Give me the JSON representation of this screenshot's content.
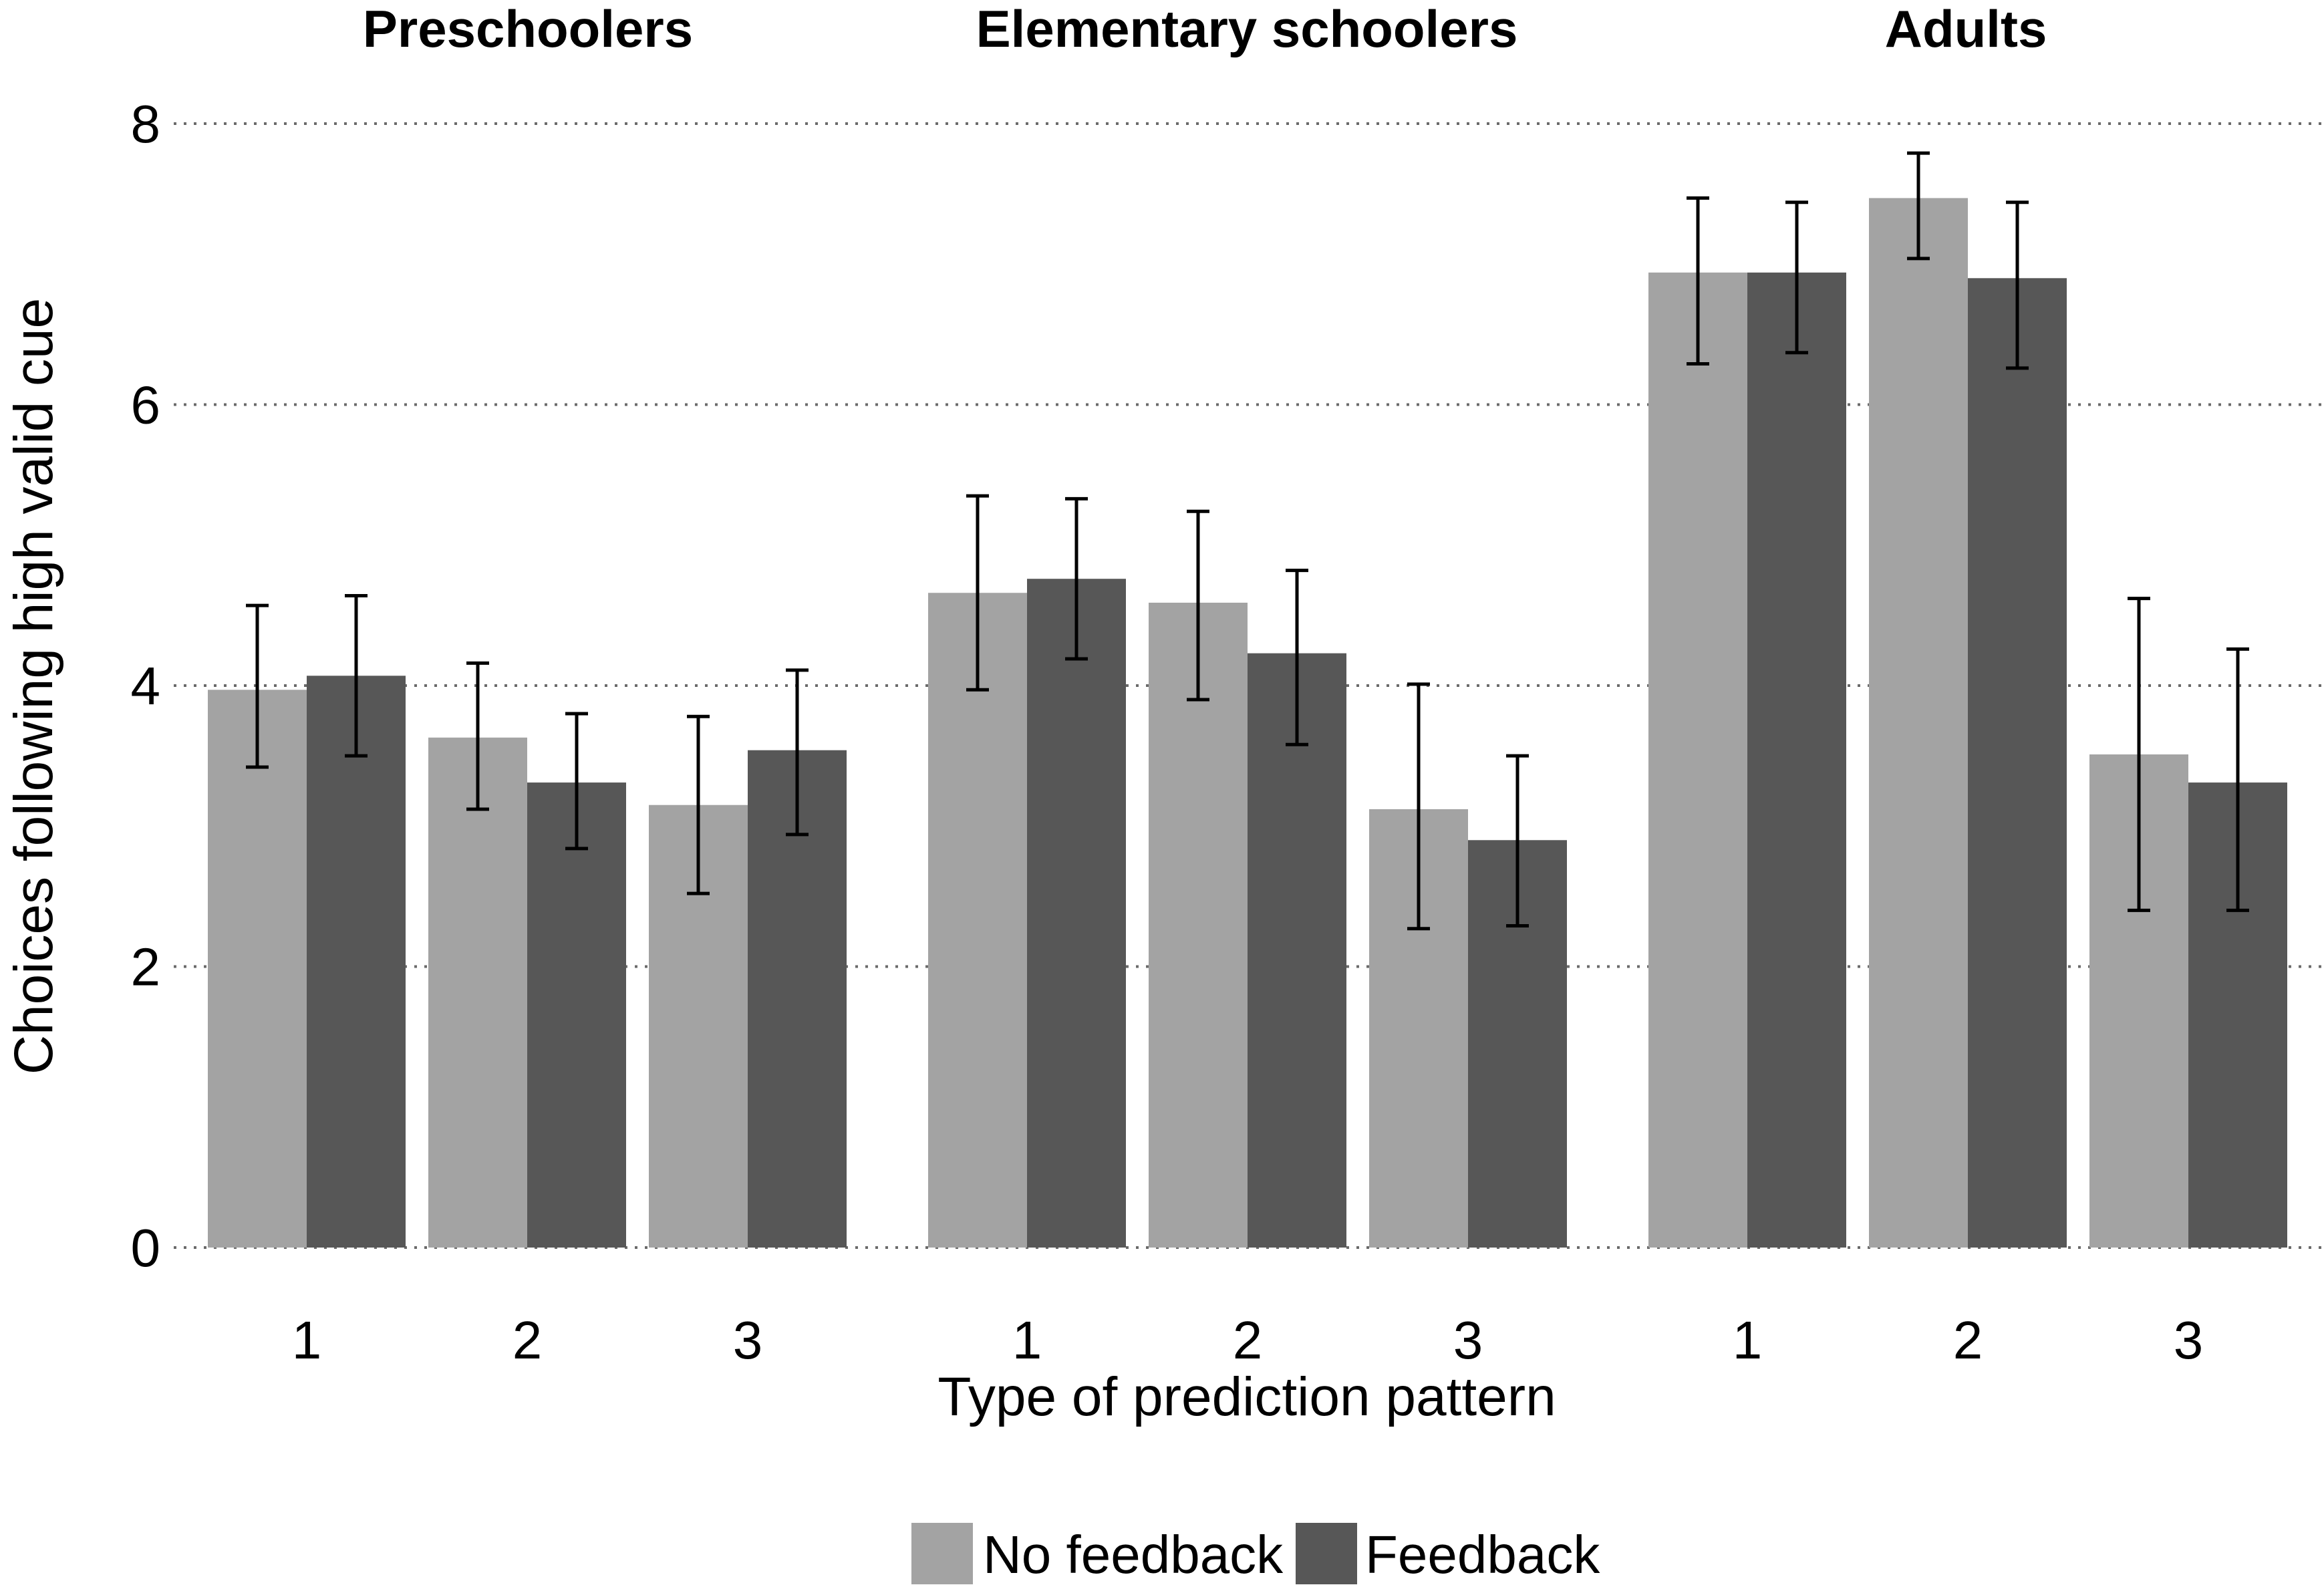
{
  "chart_data": {
    "type": "bar",
    "ylabel": "Choices following high valid cue",
    "xlabel": "Type of prediction pattern",
    "ylim": [
      0,
      8
    ],
    "yticks": [
      0,
      2,
      4,
      6,
      8
    ],
    "grid": "horizontal dotted",
    "legend_position": "bottom",
    "categories": [
      "1",
      "2",
      "3"
    ],
    "colors": {
      "No feedback": "#a3a3a3",
      "Feedback": "#575757"
    },
    "legend": [
      "No feedback",
      "Feedback"
    ],
    "panels": [
      {
        "title": "Preschoolers",
        "series": [
          {
            "name": "No feedback",
            "values": [
              3.97,
              3.63,
              3.15
            ],
            "ci_low": [
              3.42,
              3.12,
              2.52
            ],
            "ci_high": [
              4.57,
              4.16,
              3.78
            ]
          },
          {
            "name": "Feedback",
            "values": [
              4.07,
              3.31,
              3.54
            ],
            "ci_low": [
              3.5,
              2.84,
              2.94
            ],
            "ci_high": [
              4.64,
              3.8,
              4.11
            ]
          }
        ]
      },
      {
        "title": "Elementary schoolers",
        "series": [
          {
            "name": "No feedback",
            "values": [
              4.66,
              4.59,
              3.12
            ],
            "ci_low": [
              3.97,
              3.9,
              2.27
            ],
            "ci_high": [
              5.35,
              5.24,
              4.01
            ]
          },
          {
            "name": "Feedback",
            "values": [
              4.76,
              4.23,
              2.9
            ],
            "ci_low": [
              4.19,
              3.58,
              2.29
            ],
            "ci_high": [
              5.33,
              4.82,
              3.5
            ]
          }
        ]
      },
      {
        "title": "Adults",
        "series": [
          {
            "name": "No feedback",
            "values": [
              6.94,
              7.47,
              3.51
            ],
            "ci_low": [
              6.29,
              7.04,
              2.4
            ],
            "ci_high": [
              7.47,
              7.79,
              4.62
            ]
          },
          {
            "name": "Feedback",
            "values": [
              6.94,
              6.9,
              3.31
            ],
            "ci_low": [
              6.37,
              6.26,
              2.4
            ],
            "ci_high": [
              7.44,
              7.44,
              4.26
            ]
          }
        ]
      }
    ]
  }
}
